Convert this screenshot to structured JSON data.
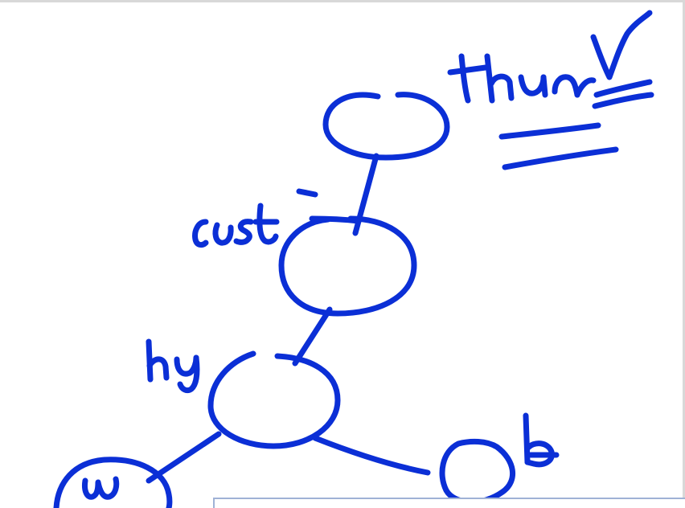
{
  "ink_color": "#0b2fd6",
  "panel_border_color": "#9fb2d6",
  "annotations": {
    "top_right": "thm",
    "node2_label": "cust",
    "node3_label": "hy",
    "bottom_left_node": "w",
    "bottom_right_label": "b"
  },
  "marks": {
    "checkmark_icon": "check-icon",
    "double_underline": "double-underline"
  }
}
